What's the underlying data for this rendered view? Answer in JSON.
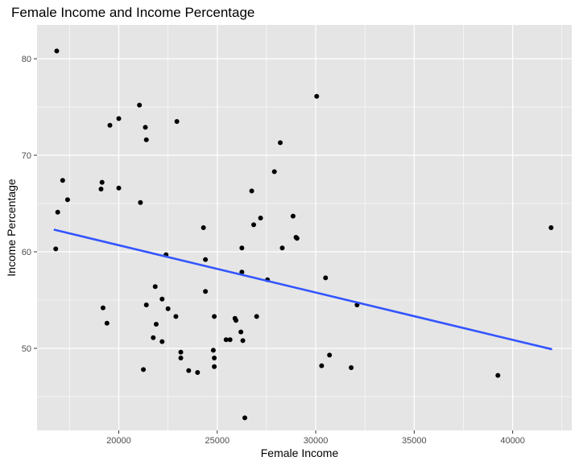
{
  "chart_data": {
    "type": "scatter",
    "title": "Female Income and Income Percentage",
    "xlabel": "Female Income",
    "ylabel": "Income Percentage",
    "xlim": [
      15850,
      43000
    ],
    "ylim": [
      41.5,
      83.5
    ],
    "x_ticks": [
      20000,
      25000,
      30000,
      35000,
      40000
    ],
    "x_tick_labels": [
      "20000",
      "25000",
      "30000",
      "35000",
      "40000"
    ],
    "y_ticks": [
      50,
      60,
      70,
      80
    ],
    "y_tick_labels": [
      "50",
      "60",
      "70",
      "80"
    ],
    "grid": true,
    "legend": "none",
    "colors": {
      "panel": "#e5e5e5",
      "grid": "#ffffff",
      "points": "#000000",
      "trend": "#3355ff"
    },
    "trend_line": {
      "method": "linear",
      "x": [
        16700,
        42000
      ],
      "y": [
        62.3,
        49.9
      ]
    },
    "points": [
      {
        "x": 16850,
        "y": 80.8
      },
      {
        "x": 16900,
        "y": 64.1
      },
      {
        "x": 16800,
        "y": 60.3
      },
      {
        "x": 17150,
        "y": 67.4
      },
      {
        "x": 17400,
        "y": 65.4
      },
      {
        "x": 19150,
        "y": 67.2
      },
      {
        "x": 19100,
        "y": 66.5
      },
      {
        "x": 19200,
        "y": 54.2
      },
      {
        "x": 19400,
        "y": 52.6
      },
      {
        "x": 19550,
        "y": 73.1
      },
      {
        "x": 20000,
        "y": 73.8
      },
      {
        "x": 20000,
        "y": 66.6
      },
      {
        "x": 21050,
        "y": 75.2
      },
      {
        "x": 21350,
        "y": 72.9
      },
      {
        "x": 21400,
        "y": 71.6
      },
      {
        "x": 21100,
        "y": 65.1
      },
      {
        "x": 21400,
        "y": 54.5
      },
      {
        "x": 21250,
        "y": 47.8
      },
      {
        "x": 21850,
        "y": 56.4
      },
      {
        "x": 21900,
        "y": 52.5
      },
      {
        "x": 21750,
        "y": 51.1
      },
      {
        "x": 22200,
        "y": 55.1
      },
      {
        "x": 22200,
        "y": 50.7
      },
      {
        "x": 22400,
        "y": 59.7
      },
      {
        "x": 22500,
        "y": 54.1
      },
      {
        "x": 22900,
        "y": 53.3
      },
      {
        "x": 22950,
        "y": 73.5
      },
      {
        "x": 23150,
        "y": 49.6
      },
      {
        "x": 23150,
        "y": 49.0
      },
      {
        "x": 23550,
        "y": 47.7
      },
      {
        "x": 24000,
        "y": 47.5
      },
      {
        "x": 24300,
        "y": 62.5
      },
      {
        "x": 24400,
        "y": 59.2
      },
      {
        "x": 24400,
        "y": 55.9
      },
      {
        "x": 24850,
        "y": 53.3
      },
      {
        "x": 24800,
        "y": 49.8
      },
      {
        "x": 24850,
        "y": 49.0
      },
      {
        "x": 24850,
        "y": 48.1
      },
      {
        "x": 25450,
        "y": 50.9
      },
      {
        "x": 25650,
        "y": 50.9
      },
      {
        "x": 25900,
        "y": 53.1
      },
      {
        "x": 25950,
        "y": 52.9
      },
      {
        "x": 26200,
        "y": 51.7
      },
      {
        "x": 26300,
        "y": 50.8
      },
      {
        "x": 26250,
        "y": 60.4
      },
      {
        "x": 26250,
        "y": 57.9
      },
      {
        "x": 26400,
        "y": 42.8
      },
      {
        "x": 26750,
        "y": 66.3
      },
      {
        "x": 26850,
        "y": 62.8
      },
      {
        "x": 27000,
        "y": 53.3
      },
      {
        "x": 27200,
        "y": 63.5
      },
      {
        "x": 27550,
        "y": 57.1
      },
      {
        "x": 27900,
        "y": 68.3
      },
      {
        "x": 28200,
        "y": 71.3
      },
      {
        "x": 28300,
        "y": 60.4
      },
      {
        "x": 28850,
        "y": 63.7
      },
      {
        "x": 29000,
        "y": 61.5
      },
      {
        "x": 29050,
        "y": 61.4
      },
      {
        "x": 30050,
        "y": 76.1
      },
      {
        "x": 30300,
        "y": 48.2
      },
      {
        "x": 30500,
        "y": 57.3
      },
      {
        "x": 30700,
        "y": 49.3
      },
      {
        "x": 31800,
        "y": 48.0
      },
      {
        "x": 32100,
        "y": 54.5
      },
      {
        "x": 39250,
        "y": 47.2
      },
      {
        "x": 41950,
        "y": 62.5
      }
    ]
  }
}
